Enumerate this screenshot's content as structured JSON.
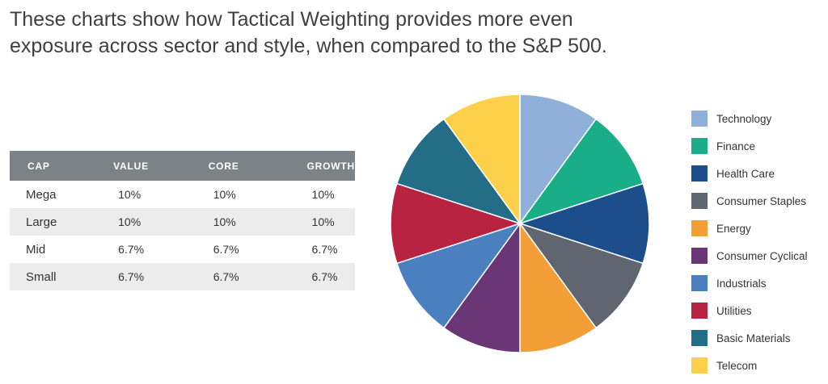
{
  "heading": "These charts show how Tactical Weighting provides more even exposure across sector and style, when compared to the S&P 500.",
  "table": {
    "headers": [
      "CAP",
      "VALUE",
      "CORE",
      "GROWTH"
    ],
    "rows": [
      [
        "Mega",
        "10%",
        "10%",
        "10%"
      ],
      [
        "Large",
        "10%",
        "10%",
        "10%"
      ],
      [
        "Mid",
        "6.7%",
        "6.7%",
        "6.7%"
      ],
      [
        "Small",
        "6.7%",
        "6.7%",
        "6.7%"
      ]
    ]
  },
  "chart_data": {
    "type": "pie",
    "title": "",
    "categories": [
      "Technology",
      "Finance",
      "Health Care",
      "Consumer Staples",
      "Energy",
      "Consumer Cyclical",
      "Industrials",
      "Utilities",
      "Basic Materials",
      "Telecom"
    ],
    "values": [
      10,
      10,
      10,
      10,
      10,
      10,
      10,
      10,
      10,
      10
    ],
    "colors": [
      "#8fb0d9",
      "#1aae88",
      "#1d4e8c",
      "#5f6670",
      "#f49e37",
      "#6a3675",
      "#4a7fc0",
      "#b82342",
      "#246d87",
      "#fcd04a"
    ],
    "start_angle_deg": 0,
    "direction": "clockwise",
    "legend": "right"
  }
}
